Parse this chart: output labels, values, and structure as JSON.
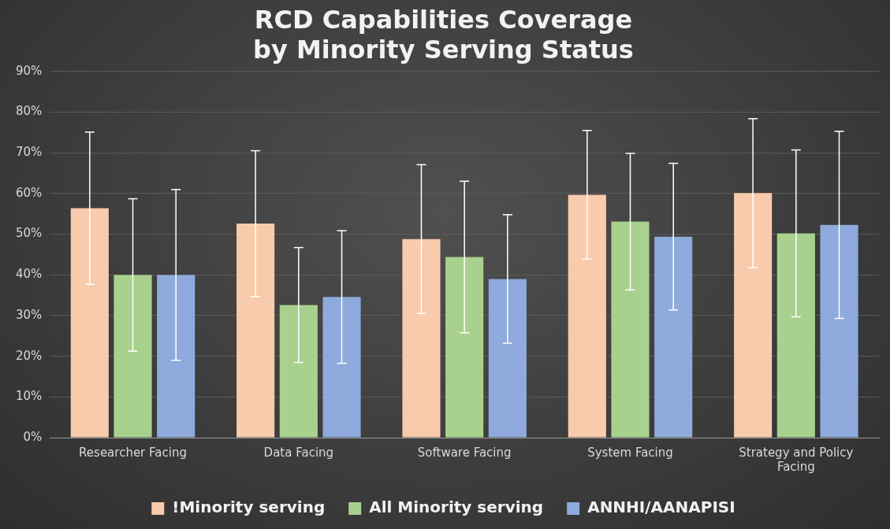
{
  "chart_data": {
    "type": "bar",
    "title": "RCD Capabilities Coverage\nby Minority Serving Status",
    "categories": [
      "Researcher Facing",
      "Data Facing",
      "Software Facing",
      "System Facing",
      "Strategy and Policy Facing"
    ],
    "series": [
      {
        "name": "!Minority serving",
        "color": "#f8cbad",
        "values": [
          56.4,
          52.6,
          48.8,
          59.7,
          60.1
        ],
        "errors": [
          18.7,
          17.9,
          18.3,
          15.8,
          18.3
        ]
      },
      {
        "name": "All Minority serving",
        "color": "#a9d18e",
        "values": [
          40.0,
          32.6,
          44.4,
          53.1,
          50.2
        ],
        "errors": [
          18.7,
          14.1,
          18.6,
          16.8,
          20.5
        ]
      },
      {
        "name": "ANNHI/AANAPISI",
        "color": "#8faadc",
        "values": [
          40.0,
          34.6,
          39.0,
          49.4,
          52.3
        ],
        "errors": [
          21.0,
          16.3,
          15.8,
          18.0,
          23.0
        ]
      }
    ],
    "ylim": [
      0,
      90
    ],
    "yticks": [
      {
        "value": 0,
        "label": "0%"
      },
      {
        "value": 10,
        "label": "10%"
      },
      {
        "value": 20,
        "label": "20%"
      },
      {
        "value": 30,
        "label": "30%"
      },
      {
        "value": 40,
        "label": "40%"
      },
      {
        "value": 50,
        "label": "50%"
      },
      {
        "value": 60,
        "label": "60%"
      },
      {
        "value": 70,
        "label": "70%"
      },
      {
        "value": 80,
        "label": "80%"
      },
      {
        "value": 90,
        "label": "90%"
      }
    ],
    "grid": "y",
    "legend": "bottom"
  }
}
